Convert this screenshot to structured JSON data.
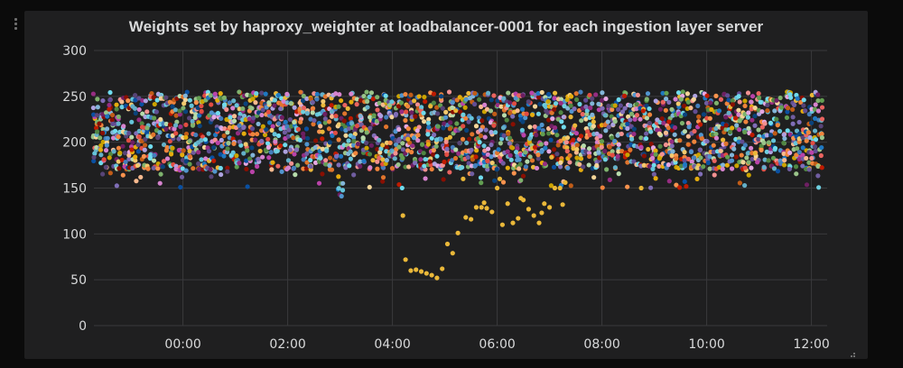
{
  "panel": {
    "title": "Weights set by haproxy_weighter at loadbalancer-0001 for each ingestion layer server"
  },
  "chart_data": {
    "type": "scatter",
    "title": "Weights set by haproxy_weighter at loadbalancer-0001 for each ingestion layer server",
    "xlabel": "",
    "ylabel": "",
    "x_unit": "hours (time of day)",
    "xlim": [
      -1.7,
      12.3
    ],
    "ylim": [
      0,
      300
    ],
    "x_ticks": [
      "00:00",
      "02:00",
      "04:00",
      "06:00",
      "08:00",
      "10:00",
      "12:00"
    ],
    "y_ticks": [
      "0",
      "50",
      "100",
      "150",
      "200",
      "250",
      "300"
    ],
    "grid": true,
    "legend": "none",
    "background": "#1f1f20",
    "grid_color": "#3a3a3c",
    "series_colors": [
      "#7eb26d",
      "#eab839",
      "#6ed0e0",
      "#ef843c",
      "#e24d42",
      "#1f78c1",
      "#ba43a9",
      "#705da0",
      "#508642",
      "#cca300",
      "#447ebc",
      "#c15c17",
      "#890f02",
      "#0a437c",
      "#6d1f62",
      "#584477",
      "#b7dbab",
      "#f4d598",
      "#70dbed",
      "#f9ba8f",
      "#f29191",
      "#82b5d8",
      "#e5a8e2",
      "#aea2e0",
      "#629e51",
      "#e5ac0e",
      "#64b0c8",
      "#e0752d",
      "#bf1b00",
      "#0a50a1",
      "#962d82",
      "#614d93",
      "#9ac48a",
      "#f2c96d",
      "#65c5db",
      "#f9934e",
      "#ea6460",
      "#5195ce",
      "#d683ce",
      "#806eb7"
    ],
    "cluster": {
      "description": "many overlapping series, one per ingestion server",
      "x_range": [
        -1.7,
        12.2
      ],
      "y_typical": [
        170,
        255
      ],
      "y_min": 135,
      "y_max": 256
    },
    "series": [
      {
        "color": "#eab839",
        "x": [
          4.25,
          4.35,
          4.45,
          4.55,
          4.65,
          4.75,
          4.85,
          4.95,
          5.05,
          5.15,
          5.25,
          5.4,
          5.5,
          5.6,
          5.7,
          5.8,
          5.9,
          6.0,
          6.1,
          6.2,
          6.3,
          6.4,
          6.5,
          6.6,
          6.7,
          6.8,
          6.9,
          7.0,
          7.1,
          7.2,
          7.3,
          4.2,
          5.35,
          5.75,
          6.05,
          6.45,
          6.85,
          7.25,
          8.75
        ],
        "y": [
          72,
          60,
          61,
          59,
          57,
          55,
          52,
          62,
          89,
          79,
          101,
          118,
          116,
          129,
          129,
          128,
          124,
          150,
          110,
          133,
          112,
          117,
          137,
          127,
          120,
          112,
          133,
          129,
          150,
          150,
          156,
          120,
          160,
          134,
          160,
          139,
          123,
          132,
          150
        ]
      }
    ]
  }
}
